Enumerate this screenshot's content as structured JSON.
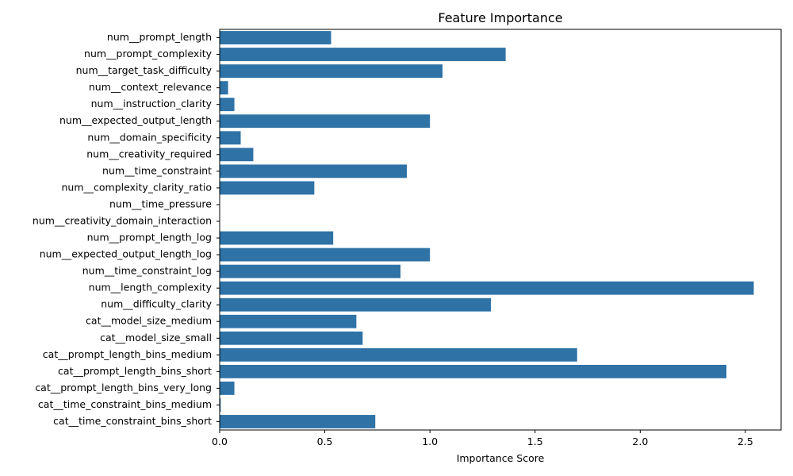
{
  "chart_data": {
    "type": "bar",
    "orientation": "horizontal",
    "title": "Feature Importance",
    "xlabel": "Importance Score",
    "ylabel": "",
    "xlim": [
      0,
      2.67
    ],
    "xticks": [
      0.0,
      0.5,
      1.0,
      1.5,
      2.0,
      2.5
    ],
    "xtick_labels": [
      "0.0",
      "0.5",
      "1.0",
      "1.5",
      "2.0",
      "2.5"
    ],
    "grid": false,
    "bar_color": "#2e72a6",
    "categories": [
      "num__prompt_length",
      "num__prompt_complexity",
      "num__target_task_difficulty",
      "num__context_relevance",
      "num__instruction_clarity",
      "num__expected_output_length",
      "num__domain_specificity",
      "num__creativity_required",
      "num__time_constraint",
      "num__complexity_clarity_ratio",
      "num__time_pressure",
      "num__creativity_domain_interaction",
      "num__prompt_length_log",
      "num__expected_output_length_log",
      "num__time_constraint_log",
      "num__length_complexity",
      "num__difficulty_clarity",
      "cat__model_size_medium",
      "cat__model_size_small",
      "cat__prompt_length_bins_medium",
      "cat__prompt_length_bins_short",
      "cat__prompt_length_bins_very_long",
      "cat__time_constraint_bins_medium",
      "cat__time_constraint_bins_short"
    ],
    "values": [
      0.53,
      1.36,
      1.06,
      0.04,
      0.07,
      1.0,
      0.1,
      0.16,
      0.89,
      0.45,
      0.0,
      0.0,
      0.54,
      1.0,
      0.86,
      2.54,
      1.29,
      0.65,
      0.68,
      1.7,
      2.41,
      0.07,
      0.005,
      0.74
    ]
  }
}
